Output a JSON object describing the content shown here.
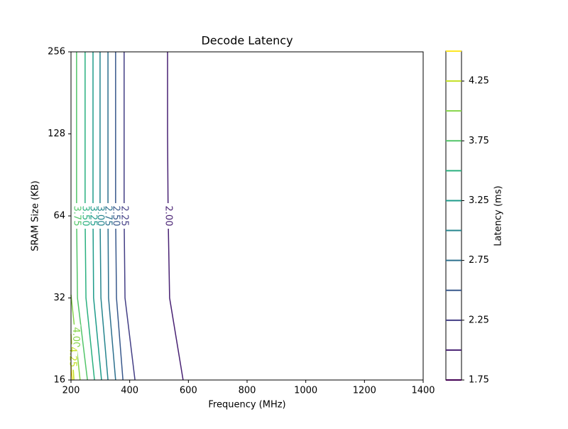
{
  "chart_data": {
    "type": "contour",
    "title": "Decode Latency",
    "xlabel": "Frequency (MHz)",
    "ylabel": "SRAM Size (KB)",
    "xlim": [
      200,
      1400
    ],
    "xticks": [
      200,
      400,
      600,
      800,
      1000,
      1200,
      1400
    ],
    "ylim": [
      16,
      256
    ],
    "yticks": [
      16,
      32,
      64,
      128,
      256
    ],
    "ylog": 2,
    "colorbar": {
      "label": "Latency (ms)",
      "lim": [
        1.75,
        4.5
      ],
      "ticks": [
        {
          "value": 1.75,
          "label": "1.75"
        },
        {
          "value": 2.25,
          "label": "2.25"
        },
        {
          "value": 2.75,
          "label": "2.75"
        },
        {
          "value": 3.25,
          "label": "3.25"
        },
        {
          "value": 3.75,
          "label": "3.75"
        },
        {
          "value": 4.25,
          "label": "4.25"
        }
      ],
      "levels": [
        1.75,
        2,
        2.25,
        2.5,
        2.75,
        3,
        3.25,
        3.5,
        3.75,
        4,
        4.25,
        4.5
      ],
      "colors": [
        "#440154",
        "#482173",
        "#433e85",
        "#38588c",
        "#2d708e",
        "#25858e",
        "#1e9b8a",
        "#2ab07f",
        "#52c569",
        "#86d549",
        "#c2df23",
        "#fde725"
      ]
    },
    "series": [
      {
        "name": "2.00",
        "color": "#482173",
        "x": [
          582,
          536,
          531,
          529,
          529
        ],
        "y": [
          16,
          32,
          64,
          128,
          256
        ]
      },
      {
        "name": "2.25",
        "color": "#433e85",
        "x": [
          418,
          384,
          381,
          381,
          381
        ],
        "y": [
          16,
          32,
          64,
          128,
          256
        ]
      },
      {
        "name": "2.50",
        "color": "#38588c",
        "x": [
          377,
          355,
          352,
          352,
          352
        ],
        "y": [
          16,
          32,
          64,
          128,
          256
        ]
      },
      {
        "name": "2.75",
        "color": "#2d708e",
        "x": [
          352,
          328,
          326,
          326,
          326
        ],
        "y": [
          16,
          32,
          64,
          128,
          256
        ]
      },
      {
        "name": "3.00",
        "color": "#25858e",
        "x": [
          326,
          302,
          299,
          299,
          299
        ],
        "y": [
          16,
          32,
          64,
          128,
          256
        ]
      },
      {
        "name": "3.25",
        "color": "#1e9b8a",
        "x": [
          304,
          277,
          275,
          275,
          275
        ],
        "y": [
          16,
          32,
          64,
          128,
          256
        ]
      },
      {
        "name": "3.50",
        "color": "#2ab07f",
        "x": [
          280,
          251,
          248,
          248,
          248
        ],
        "y": [
          16,
          32,
          64,
          128,
          256
        ]
      },
      {
        "name": "3.75",
        "color": "#52c569",
        "x": [
          256,
          222,
          219,
          219,
          219
        ],
        "y": [
          16,
          32,
          64,
          128,
          256
        ]
      },
      {
        "name": "4.00",
        "color": "#86d549",
        "x": [
          231,
          200
        ],
        "y": [
          16,
          32.9
        ]
      },
      {
        "name": "4.25",
        "color": "#c2df23",
        "x": [
          210,
          200
        ],
        "y": [
          16,
          23.6
        ]
      },
      {
        "color": "#fde725",
        "x": [
          205,
          200
        ],
        "y": [
          16,
          18
        ]
      }
    ]
  }
}
